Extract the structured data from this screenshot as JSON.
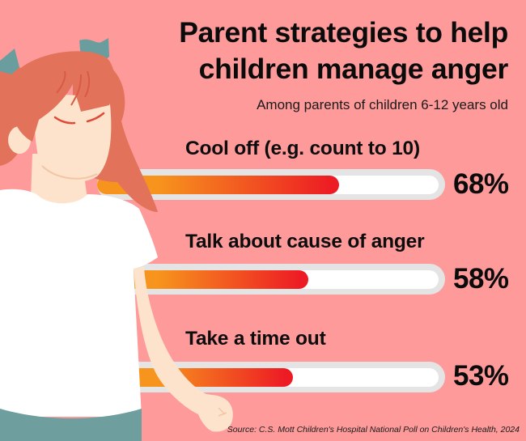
{
  "title_lines": [
    "Parent strategies to help",
    "children manage anger"
  ],
  "subtitle": "Among parents of children 6-12 years old",
  "source": "Source: C.S. Mott Children's Hospital National Poll on Children's Health, 2024",
  "colors": {
    "background": "#fe9a9a",
    "bar_gradient_start": "#f7941d",
    "bar_gradient_end": "#ed1c24",
    "track": "#e4e4e4",
    "track_inner": "#ffffff",
    "hair": "#e2735a",
    "bow": "#6a9e9e",
    "skin": "#fde3cc",
    "shirt": "#ffffff",
    "pants": "#6e9e9e"
  },
  "bars": [
    {
      "label": "Cool off (e.g. count to 10)",
      "value": 68,
      "value_label": "68%"
    },
    {
      "label": "Talk about cause of anger",
      "value": 58,
      "value_label": "58%"
    },
    {
      "label": "Take a time out",
      "value": 53,
      "value_label": "53%"
    }
  ],
  "illustration": {
    "subject": "angry-girl-with-pigtails",
    "expression": "frowning-closed-eyes"
  },
  "chart_data": {
    "type": "bar",
    "orientation": "horizontal",
    "title": "Parent strategies to help children manage anger",
    "subtitle": "Among parents of children 6-12 years old",
    "categories": [
      "Cool off (e.g. count to 10)",
      "Talk about cause of anger",
      "Take a time out"
    ],
    "values": [
      68,
      58,
      53
    ],
    "unit": "%",
    "xlim": [
      0,
      100
    ],
    "grid": false,
    "legend": null,
    "source": "Source: C.S. Mott Children's Hospital National Poll on Children's Health, 2024"
  }
}
